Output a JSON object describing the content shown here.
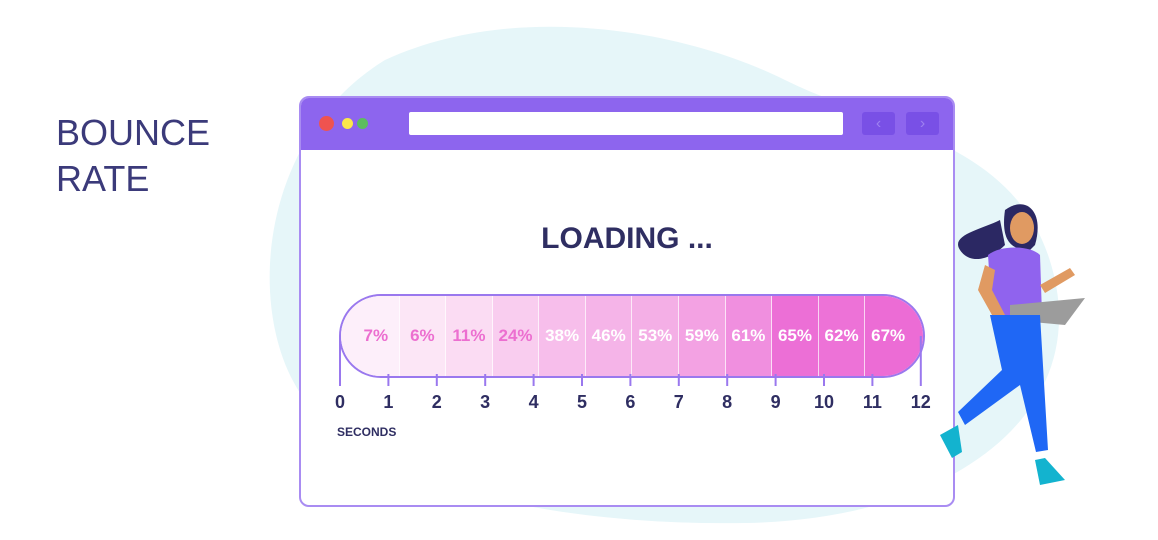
{
  "title_lines": [
    "BOUNCE",
    "RATE"
  ],
  "browser": {
    "loading_text": "LOADING ...",
    "back_icon": "chevron-left-icon",
    "forward_icon": "chevron-right-icon",
    "nav_back": "‹",
    "nav_forward": "›"
  },
  "chart_data": {
    "type": "table",
    "xlabel": "SECONDS",
    "ticks": [
      "0",
      "1",
      "2",
      "3",
      "4",
      "5",
      "6",
      "7",
      "8",
      "9",
      "10",
      "11",
      "12"
    ],
    "intervals": [
      "0-1",
      "1-2",
      "2-3",
      "3-4",
      "4-5",
      "5-6",
      "6-7",
      "7-8",
      "8-9",
      "9-10",
      "10-11",
      "11-12"
    ],
    "values": [
      "7%",
      "6%",
      "11%",
      "24%",
      "38%",
      "46%",
      "53%",
      "59%",
      "61%",
      "65%",
      "62%",
      "67%"
    ],
    "segment_colors": [
      "#fdeffa",
      "#fce6f6",
      "#fbdcf3",
      "#f9cdef",
      "#f7beeb",
      "#f5b4e8",
      "#f4afe6",
      "#f3a2e3",
      "#f08fdf",
      "#ec6fd6",
      "#ed72d7",
      "#ec6cd5"
    ],
    "text_colors": [
      "#ec6fd0",
      "#ec6fd0",
      "#ec6fd0",
      "#ec6fd0",
      "#ffffff",
      "#ffffff",
      "#ffffff",
      "#ffffff",
      "#ffffff",
      "#ffffff",
      "#ffffff",
      "#ffffff"
    ]
  },
  "colors": {
    "window_header": "#8d65ee",
    "title": "#3b3a7a",
    "blob": "#e6f6f9"
  }
}
